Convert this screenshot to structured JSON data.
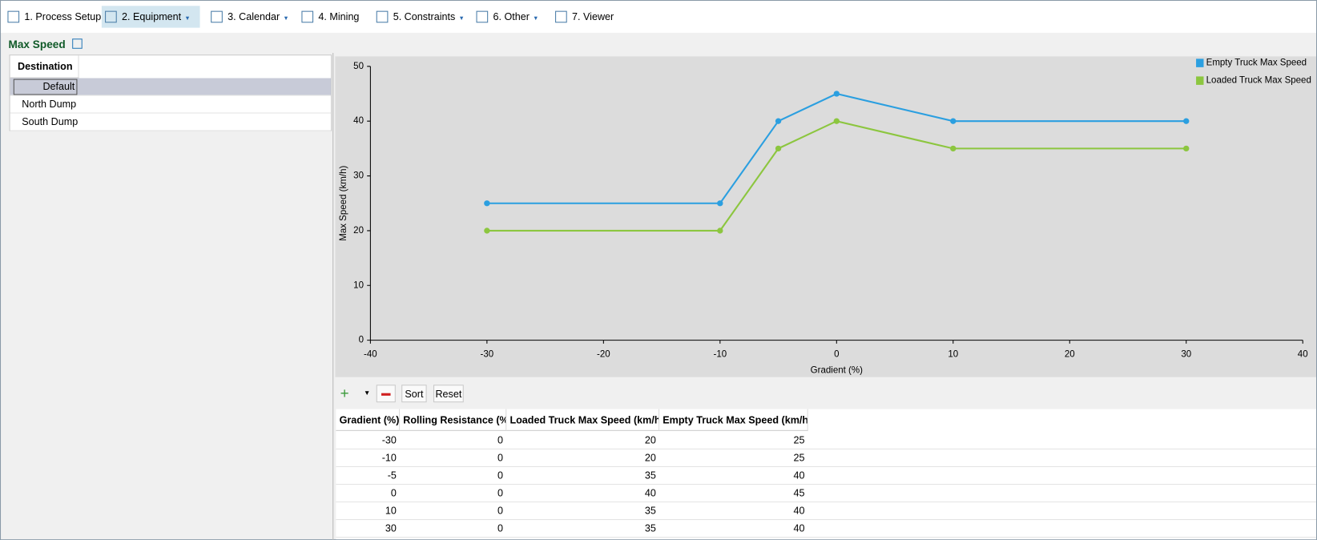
{
  "toolbar": {
    "items": [
      "1. Process Setup",
      "2. Equipment",
      "3. Calendar",
      "4. Mining",
      "5. Constraints",
      "6. Other",
      "7. Viewer"
    ]
  },
  "panel": {
    "title": "Max Speed"
  },
  "destination_table": {
    "header": "Destination",
    "rows": [
      "Default",
      "North Dump",
      "South Dump"
    ]
  },
  "chart_data": {
    "type": "line",
    "x": [
      -30,
      -10,
      -5,
      0,
      10,
      30
    ],
    "series": [
      {
        "name": "Empty Truck Max Speed",
        "color": "#2b9fe0",
        "values": [
          25,
          25,
          40,
          45,
          40,
          40
        ]
      },
      {
        "name": "Loaded Truck Max Speed",
        "color": "#8cc63f",
        "values": [
          20,
          20,
          35,
          40,
          35,
          35
        ]
      }
    ],
    "xlabel": "Gradient (%)",
    "ylabel": "Max Speed (km/h)",
    "xlim": [
      -40,
      40
    ],
    "xticks": [
      -40,
      -30,
      -20,
      -10,
      0,
      10,
      20,
      30,
      40
    ],
    "ylim": [
      0,
      50
    ],
    "yticks": [
      0,
      10,
      20,
      30,
      40,
      50
    ],
    "legend": "top-right"
  },
  "table_toolbar": {
    "buttons": [
      "Sort",
      "Reset"
    ]
  },
  "table": {
    "headers": [
      "Gradient (%)",
      "Rolling Resistance (%)",
      "Loaded Truck Max Speed (km/h)",
      "Empty Truck Max Speed (km/h)"
    ],
    "rows": [
      [
        -30,
        0,
        20,
        25
      ],
      [
        -10,
        0,
        20,
        25
      ],
      [
        -5,
        0,
        35,
        40
      ],
      [
        0,
        0,
        40,
        45
      ],
      [
        10,
        0,
        35,
        40
      ],
      [
        30,
        0,
        35,
        40
      ]
    ]
  }
}
